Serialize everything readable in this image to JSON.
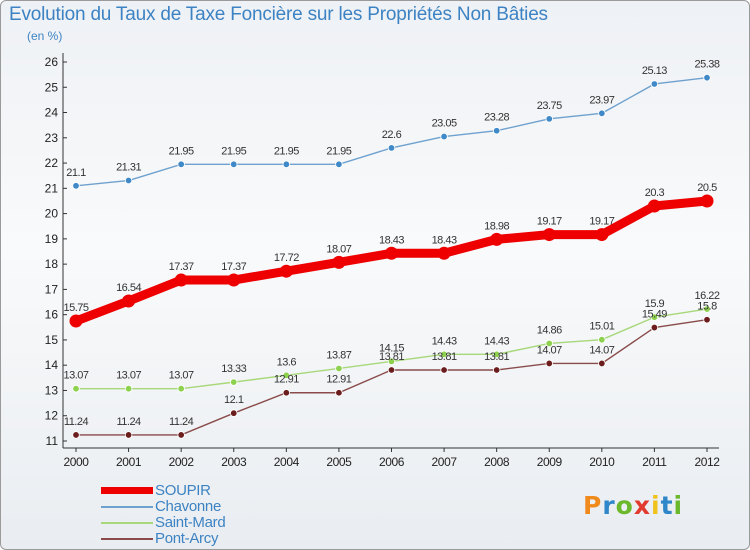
{
  "chart_data": {
    "type": "line",
    "title": "Evolution du Taux de Taxe Foncière sur les Propriétés Non Bâties",
    "ylabel": "(en %)",
    "categories": [
      "2000",
      "2001",
      "2002",
      "2003",
      "2004",
      "2005",
      "2006",
      "2007",
      "2008",
      "2009",
      "2010",
      "2011",
      "2012"
    ],
    "ylim": [
      11,
      26
    ],
    "yticks": [
      11,
      12,
      13,
      14,
      15,
      16,
      17,
      18,
      19,
      20,
      21,
      22,
      23,
      24,
      25,
      26
    ],
    "grid": false,
    "legend_position": "bottom-left",
    "series": [
      {
        "name": "SOUPIR",
        "color": "#ee0000",
        "emphasis": true,
        "values": [
          15.75,
          16.54,
          17.37,
          17.37,
          17.72,
          18.07,
          18.43,
          18.43,
          18.98,
          19.17,
          19.17,
          20.3,
          20.5
        ],
        "labels": [
          "15.75",
          "16.54",
          "17.37",
          "17.37",
          "17.72",
          "18.07",
          "18.43",
          "18.43",
          "18.98",
          "19.17",
          "19.17",
          "20.3",
          "20.5"
        ]
      },
      {
        "name": "Chavonne",
        "color": "#6fa1cf",
        "marker_color": "#3f89c9",
        "values": [
          21.1,
          21.31,
          21.95,
          21.95,
          21.95,
          21.95,
          22.6,
          23.05,
          23.28,
          23.75,
          23.97,
          25.13,
          25.38
        ],
        "labels": [
          "21.1",
          "21.31",
          "21.95",
          "21.95",
          "21.95",
          "21.95",
          "22.6",
          "23.05",
          "23.28",
          "23.75",
          "23.97",
          "25.13",
          "25.38"
        ]
      },
      {
        "name": "Saint-Mard",
        "color": "#a8d87a",
        "marker_color": "#8ed14f",
        "values": [
          13.07,
          13.07,
          13.07,
          13.33,
          13.6,
          13.87,
          14.15,
          14.43,
          14.43,
          14.86,
          15.01,
          15.9,
          16.22
        ],
        "labels": [
          "13.07",
          "13.07",
          "13.07",
          "13.33",
          "13.6",
          "13.87",
          "14.15",
          "14.43",
          "14.43",
          "14.86",
          "15.01",
          "15.9",
          "16.22"
        ]
      },
      {
        "name": "Pont-Arcy",
        "color": "#8a4b4b",
        "marker_color": "#6b1d1d",
        "values": [
          11.24,
          11.24,
          11.24,
          12.1,
          12.91,
          12.91,
          13.81,
          13.81,
          13.81,
          14.07,
          14.07,
          15.49,
          15.8
        ],
        "labels": [
          "11.24",
          "11.24",
          "11.24",
          "12.1",
          "12.91",
          "12.91",
          "13.81",
          "13.81",
          "13.81",
          "14.07",
          "14.07",
          "15.49",
          "15.8"
        ]
      }
    ]
  },
  "brand": {
    "letters": [
      "P",
      "r",
      "o",
      "x",
      "i",
      "t",
      "i"
    ],
    "colors": [
      "#f08a1c",
      "#2f86c8",
      "#6bb82c",
      "#e23a2e",
      "#f0c21c",
      "#2f86c8",
      "#6bb82c"
    ]
  }
}
